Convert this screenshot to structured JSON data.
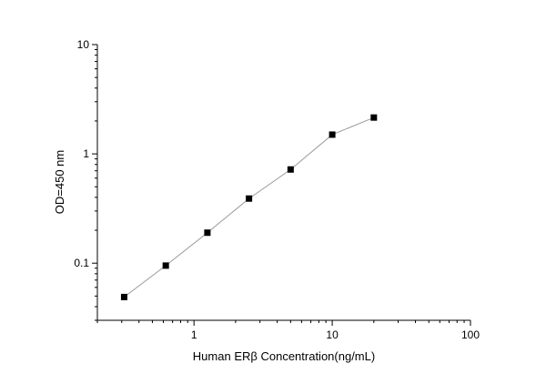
{
  "chart_data": {
    "type": "line",
    "title": "",
    "xlabel": "Human ERβ  Concentration(ng/mL)",
    "ylabel": "OD=450 nm",
    "xscale": "log",
    "yscale": "log",
    "xlim": [
      0.2,
      100
    ],
    "ylim": [
      0.03,
      10
    ],
    "xticks": [
      1,
      10,
      100
    ],
    "xtick_labels": [
      "1",
      "10",
      "100"
    ],
    "yticks": [
      0.1,
      1,
      10
    ],
    "ytick_labels": [
      "0.1",
      "1",
      "10"
    ],
    "grid": false,
    "legend": "none",
    "marker": "square",
    "line_color": "#999999",
    "marker_color": "#000000",
    "series": [
      {
        "x": [
          0.3125,
          0.625,
          1.25,
          2.5,
          5,
          10,
          20
        ],
        "y": [
          0.049,
          0.095,
          0.19,
          0.39,
          0.72,
          1.5,
          2.15
        ]
      }
    ]
  }
}
